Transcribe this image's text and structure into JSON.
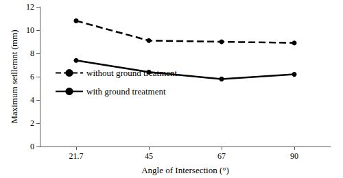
{
  "chart_data": {
    "type": "line",
    "xlabel": "Angle of Intersection (°)",
    "ylabel": "Maximum setllemnt (mm)",
    "categories": [
      "21.7",
      "45",
      "67",
      "90"
    ],
    "series": [
      {
        "name": "without ground treatment",
        "color": "#000000",
        "marker": "circle",
        "line_style": "dashed",
        "values": [
          10.8,
          9.1,
          9.0,
          8.9
        ]
      },
      {
        "name": "with ground treatment",
        "color": "#000000",
        "marker": "circle",
        "line_style": "solid",
        "values": [
          7.4,
          6.4,
          5.8,
          6.2
        ]
      }
    ],
    "ylim": [
      0,
      12
    ],
    "yticks": [
      0,
      2,
      4,
      6,
      8,
      10,
      12
    ],
    "grid": false,
    "legend": "lower left"
  }
}
